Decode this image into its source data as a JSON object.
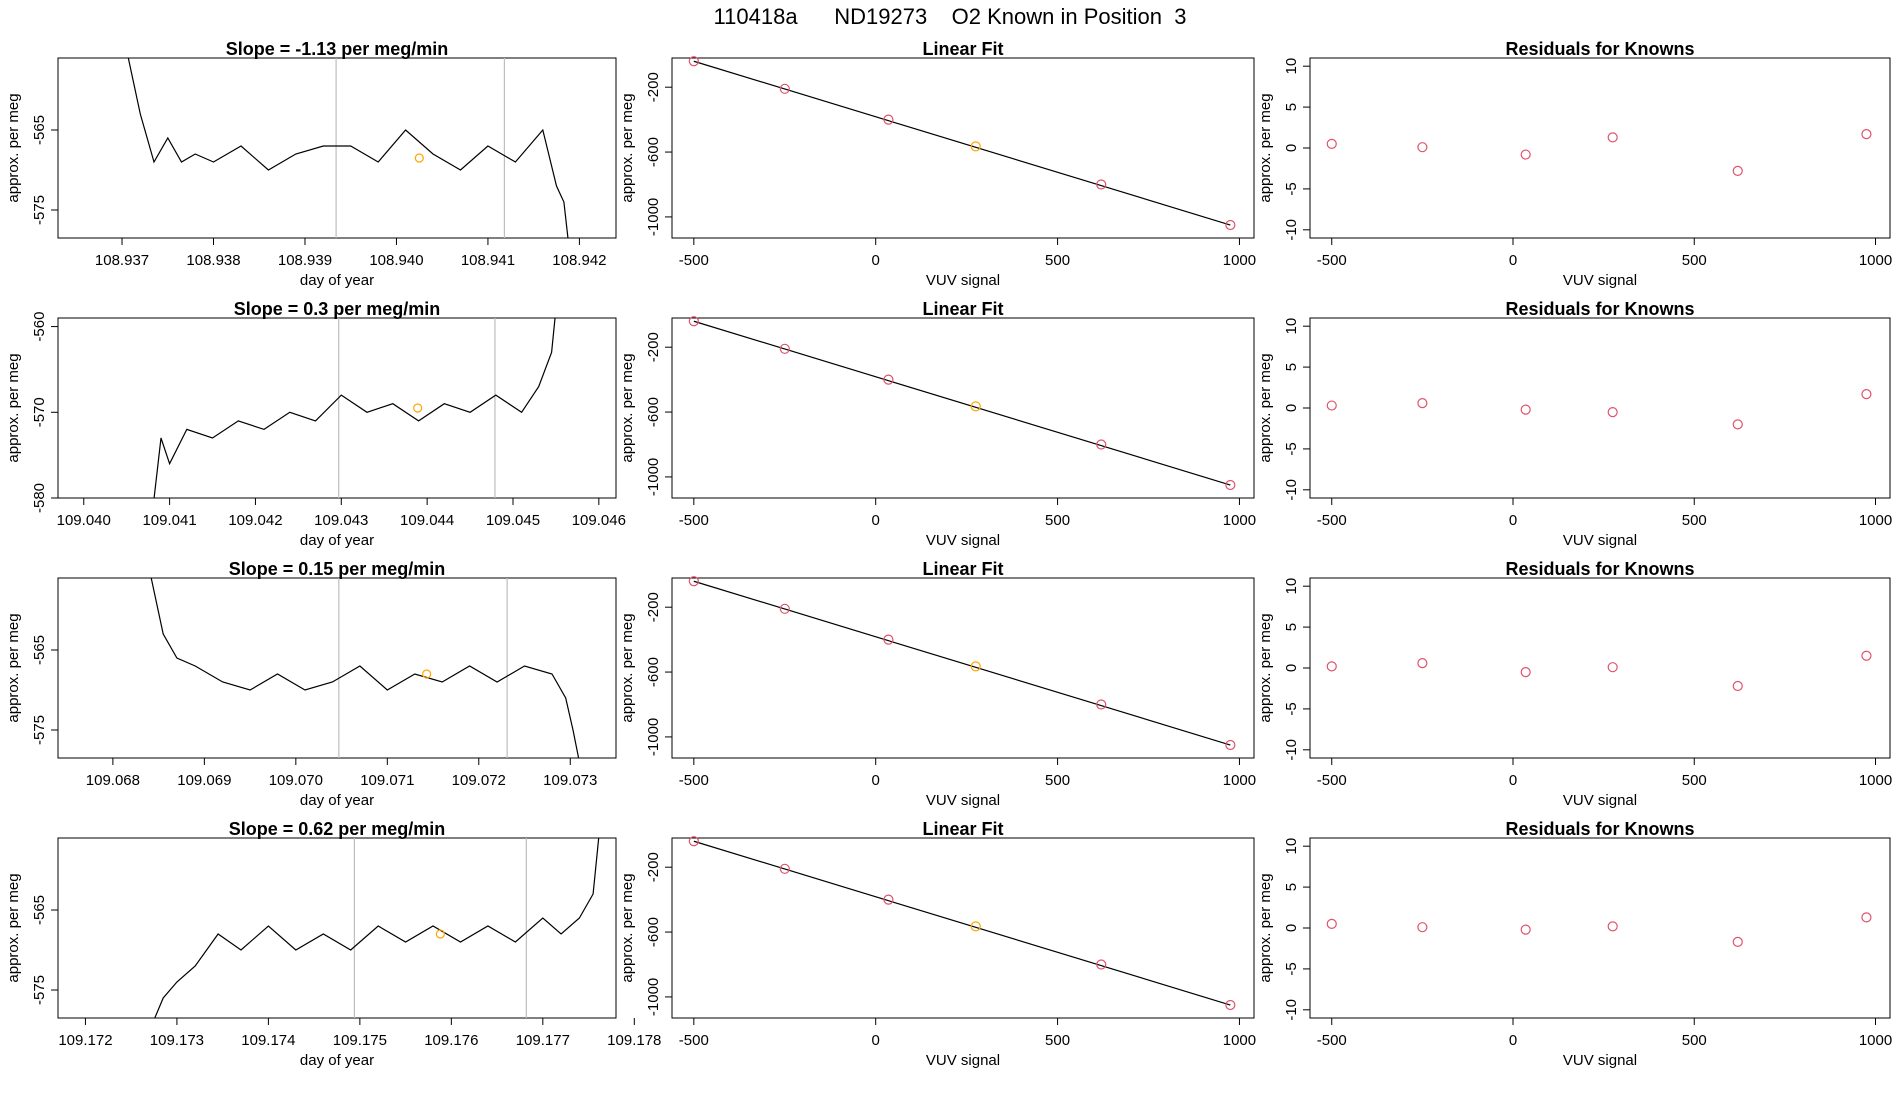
{
  "suptitle": "110418a      ND19273    O2 Known in Position  3",
  "colors": {
    "line": "#000000",
    "known": "#FFA500",
    "residual": "#DF536B",
    "vline": "#BEBEBE",
    "frame": "#000000"
  },
  "chart_data": [
    {
      "type": "line",
      "title": "Slope =  -1.13  per meg/min",
      "xlabel": "day of year",
      "ylabel": "approx. per meg",
      "xlim": [
        108.9363,
        108.9424
      ],
      "ylim": [
        -578.5,
        -556
      ],
      "xticks": [
        "108.937",
        "108.938",
        "108.939",
        "108.940",
        "108.941",
        "108.942"
      ],
      "yticks": [
        "-565",
        "-575"
      ],
      "vlines": [
        108.93934,
        108.94118
      ],
      "x": [
        108.93705,
        108.9372,
        108.93735,
        108.9375,
        108.93765,
        108.9378,
        108.938,
        108.9383,
        108.9386,
        108.9389,
        108.9392,
        108.9395,
        108.9398,
        108.9401,
        108.9404,
        108.9407,
        108.941,
        108.9413,
        108.9416,
        108.94175,
        108.94183,
        108.94188
      ],
      "y": [
        -555,
        -563,
        -569,
        -566,
        -569,
        -568,
        -569,
        -567,
        -570,
        -568,
        -567,
        -567,
        -569,
        -565,
        -568,
        -570,
        -567,
        -569,
        -565,
        -572,
        -574,
        -579
      ],
      "known": {
        "x": 108.94025,
        "y": -568.5
      }
    },
    {
      "type": "scatter",
      "title": "Linear Fit",
      "xlabel": "VUV signal",
      "ylabel": "approx. per meg",
      "xlim": [
        -560,
        1040
      ],
      "ylim": [
        -1130,
        -20
      ],
      "xticks": [
        "-500",
        "0",
        "500",
        "1000"
      ],
      "yticks": [
        "-200",
        "-600",
        "-1000"
      ],
      "x": [
        -500,
        -250,
        35,
        275,
        620,
        975
      ],
      "y": [
        -40,
        -210,
        -400,
        -565,
        -800,
        -1050
      ],
      "fit": [
        [
          -500,
          -40
        ],
        [
          975,
          -1050
        ]
      ],
      "known_index": 3
    },
    {
      "type": "scatter",
      "title": "Residuals for Knowns",
      "xlabel": "VUV signal",
      "ylabel": "approx. per meg",
      "xlim": [
        -560,
        1040
      ],
      "ylim": [
        -11,
        11
      ],
      "xticks": [
        "-500",
        "0",
        "500",
        "1000"
      ],
      "yticks": [
        "-10",
        "-5",
        "0",
        "5",
        "10"
      ],
      "x": [
        -500,
        -250,
        35,
        275,
        620,
        975
      ],
      "y": [
        0.5,
        0.1,
        -0.8,
        1.3,
        -2.8,
        1.7
      ]
    },
    {
      "type": "line",
      "title": "Slope =  0.3  per meg/min",
      "xlabel": "day of year",
      "ylabel": "approx. per meg",
      "xlim": [
        109.0397,
        109.0462
      ],
      "ylim": [
        -580,
        -559
      ],
      "xticks": [
        "109.040",
        "109.041",
        "109.042",
        "109.043",
        "109.044",
        "109.045",
        "109.046"
      ],
      "yticks": [
        "-560",
        "-570",
        "-580"
      ],
      "vlines": [
        109.04297,
        109.04479
      ],
      "x": [
        109.04082,
        109.0409,
        109.041,
        109.0412,
        109.0415,
        109.0418,
        109.0421,
        109.0424,
        109.0427,
        109.043,
        109.0433,
        109.0436,
        109.0439,
        109.0442,
        109.0445,
        109.0448,
        109.0451,
        109.0453,
        109.04545,
        109.04552
      ],
      "y": [
        -580,
        -573,
        -576,
        -572,
        -573,
        -571,
        -572,
        -570,
        -571,
        -568,
        -570,
        -569,
        -571,
        -569,
        -570,
        -568,
        -570,
        -567,
        -563,
        -556
      ],
      "known": {
        "x": 109.04389,
        "y": -569.5
      }
    },
    {
      "type": "scatter",
      "title": "Linear Fit",
      "xlabel": "VUV signal",
      "ylabel": "approx. per meg",
      "xlim": [
        -560,
        1040
      ],
      "ylim": [
        -1130,
        -20
      ],
      "xticks": [
        "-500",
        "0",
        "500",
        "1000"
      ],
      "yticks": [
        "-200",
        "-600",
        "-1000"
      ],
      "x": [
        -500,
        -250,
        35,
        275,
        620,
        975
      ],
      "y": [
        -40,
        -210,
        -400,
        -565,
        -800,
        -1050
      ],
      "fit": [
        [
          -500,
          -40
        ],
        [
          975,
          -1050
        ]
      ],
      "known_index": 3
    },
    {
      "type": "scatter",
      "title": "Residuals for Knowns",
      "xlabel": "VUV signal",
      "ylabel": "approx. per meg",
      "xlim": [
        -560,
        1040
      ],
      "ylim": [
        -11,
        11
      ],
      "xticks": [
        "-500",
        "0",
        "500",
        "1000"
      ],
      "yticks": [
        "-10",
        "-5",
        "0",
        "5",
        "10"
      ],
      "x": [
        -500,
        -250,
        35,
        275,
        620,
        975
      ],
      "y": [
        0.3,
        0.6,
        -0.2,
        -0.5,
        -2.0,
        1.7
      ]
    },
    {
      "type": "line",
      "title": "Slope =  0.15  per meg/min",
      "xlabel": "day of year",
      "ylabel": "approx. per meg",
      "xlim": [
        109.0674,
        109.0735
      ],
      "ylim": [
        -578.5,
        -556
      ],
      "xticks": [
        "109.068",
        "109.069",
        "109.070",
        "109.071",
        "109.072",
        "109.073"
      ],
      "yticks": [
        "-565",
        "-575"
      ],
      "vlines": [
        109.07047,
        109.07231
      ],
      "x": [
        109.0684,
        109.06855,
        109.0687,
        109.0689,
        109.0692,
        109.0695,
        109.0698,
        109.0701,
        109.0704,
        109.0707,
        109.071,
        109.0713,
        109.0716,
        109.0719,
        109.0722,
        109.0725,
        109.0728,
        109.07295,
        109.07303,
        109.0731
      ],
      "y": [
        -555,
        -563,
        -566,
        -567,
        -569,
        -570,
        -568,
        -570,
        -569,
        -567,
        -570,
        -568,
        -569,
        -567,
        -569,
        -567,
        -568,
        -571,
        -575,
        -579
      ],
      "known": {
        "x": 109.07143,
        "y": -568
      }
    },
    {
      "type": "scatter",
      "title": "Linear Fit",
      "xlabel": "VUV signal",
      "ylabel": "approx. per meg",
      "xlim": [
        -560,
        1040
      ],
      "ylim": [
        -1130,
        -20
      ],
      "xticks": [
        "-500",
        "0",
        "500",
        "1000"
      ],
      "yticks": [
        "-200",
        "-600",
        "-1000"
      ],
      "x": [
        -500,
        -250,
        35,
        275,
        620,
        975
      ],
      "y": [
        -40,
        -210,
        -400,
        -565,
        -800,
        -1050
      ],
      "fit": [
        [
          -500,
          -40
        ],
        [
          975,
          -1050
        ]
      ],
      "known_index": 3
    },
    {
      "type": "scatter",
      "title": "Residuals for Knowns",
      "xlabel": "VUV signal",
      "ylabel": "approx. per meg",
      "xlim": [
        -560,
        1040
      ],
      "ylim": [
        -11,
        11
      ],
      "xticks": [
        "-500",
        "0",
        "500",
        "1000"
      ],
      "yticks": [
        "-10",
        "-5",
        "0",
        "5",
        "10"
      ],
      "x": [
        -500,
        -250,
        35,
        275,
        620,
        975
      ],
      "y": [
        0.2,
        0.6,
        -0.5,
        0.1,
        -2.2,
        1.5
      ]
    },
    {
      "type": "line",
      "title": "Slope =  0.62  per meg/min",
      "xlabel": "day of year",
      "ylabel": "approx. per meg",
      "xlim": [
        109.1717,
        109.1778
      ],
      "ylim": [
        -578.5,
        -556
      ],
      "xticks": [
        "109.172",
        "109.173",
        "109.174",
        "109.175",
        "109.176",
        "109.177",
        "109.178"
      ],
      "yticks": [
        "-565",
        "-575"
      ],
      "vlines": [
        109.17494,
        109.17682
      ],
      "x": [
        109.17274,
        109.17285,
        109.173,
        109.1732,
        109.17345,
        109.1737,
        109.174,
        109.1743,
        109.1746,
        109.1749,
        109.1752,
        109.1755,
        109.1758,
        109.1761,
        109.1764,
        109.1767,
        109.177,
        109.1772,
        109.1774,
        109.17755,
        109.17762
      ],
      "y": [
        -579,
        -576,
        -574,
        -572,
        -568,
        -570,
        -567,
        -570,
        -568,
        -570,
        -567,
        -569,
        -567,
        -569,
        -567,
        -569,
        -566,
        -568,
        -566,
        -563,
        -555
      ],
      "known": {
        "x": 109.17588,
        "y": -568
      }
    },
    {
      "type": "scatter",
      "title": "Linear Fit",
      "xlabel": "VUV signal",
      "ylabel": "approx. per meg",
      "xlim": [
        -560,
        1040
      ],
      "ylim": [
        -1130,
        -20
      ],
      "xticks": [
        "-500",
        "0",
        "500",
        "1000"
      ],
      "yticks": [
        "-200",
        "-600",
        "-1000"
      ],
      "x": [
        -500,
        -250,
        35,
        275,
        620,
        975
      ],
      "y": [
        -40,
        -210,
        -400,
        -565,
        -800,
        -1050
      ],
      "fit": [
        [
          -500,
          -40
        ],
        [
          975,
          -1050
        ]
      ],
      "known_index": 3
    },
    {
      "type": "scatter",
      "title": "Residuals for Knowns",
      "xlabel": "VUV signal",
      "ylabel": "approx. per meg",
      "xlim": [
        -560,
        1040
      ],
      "ylim": [
        -11,
        11
      ],
      "xticks": [
        "-500",
        "0",
        "500",
        "1000"
      ],
      "yticks": [
        "-10",
        "-5",
        "0",
        "5",
        "10"
      ],
      "x": [
        -500,
        -250,
        35,
        275,
        620,
        975
      ],
      "y": [
        0.5,
        0.1,
        -0.2,
        0.2,
        -1.7,
        1.3
      ]
    }
  ]
}
